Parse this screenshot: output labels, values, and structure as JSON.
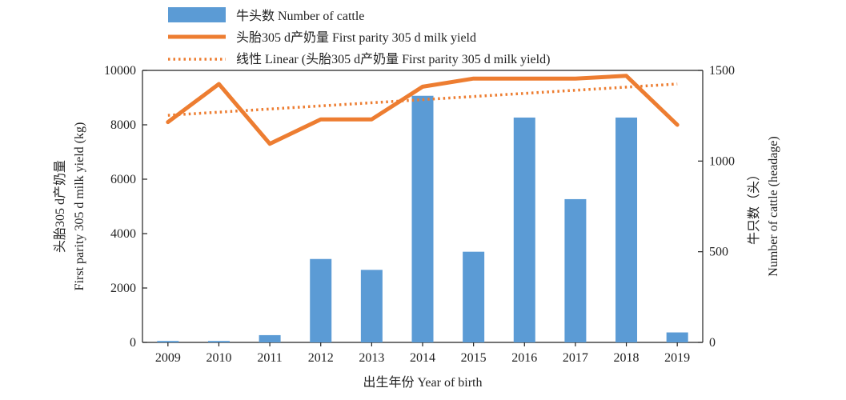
{
  "chart_data": {
    "type": "bar",
    "categories": [
      "2009",
      "2010",
      "2011",
      "2012",
      "2013",
      "2014",
      "2015",
      "2016",
      "2017",
      "2018",
      "2019"
    ],
    "series": [
      {
        "name": "牛头数 Number of cattle",
        "type": "bar",
        "axis": "right",
        "color": "#5b9bd5",
        "values": [
          8,
          8,
          40,
          460,
          400,
          1360,
          500,
          1240,
          790,
          1240,
          55
        ]
      },
      {
        "name": "头胎305 d产奶量 First parity 305 d milk yield",
        "type": "line",
        "axis": "left",
        "color": "#ed7d31",
        "values": [
          8100,
          9500,
          7300,
          8200,
          8200,
          9400,
          9700,
          9700,
          9700,
          9800,
          8000
        ]
      },
      {
        "name": "线性 Linear (头胎305 d产奶量 First parity 305 d milk yield)",
        "type": "trendline",
        "axis": "left",
        "color": "#ed7d31",
        "start": 8350,
        "end": 9500
      }
    ],
    "xlabel": "出生年份 Year of birth",
    "ylabel_left": [
      "头胎305 d产奶量",
      "First parity 305 d milk yield (kg)"
    ],
    "ylabel_right": [
      "牛只数（头）",
      "Number of cattle (headage)"
    ],
    "ylim_left": [
      0,
      10000
    ],
    "ylim_right": [
      0,
      1500
    ],
    "yticks_left": [
      "0",
      "2000",
      "4000",
      "6000",
      "8000",
      "10000"
    ],
    "yticks_right": [
      "0",
      "500",
      "1000",
      "1500"
    ],
    "grid": false,
    "legend_position": "top"
  }
}
